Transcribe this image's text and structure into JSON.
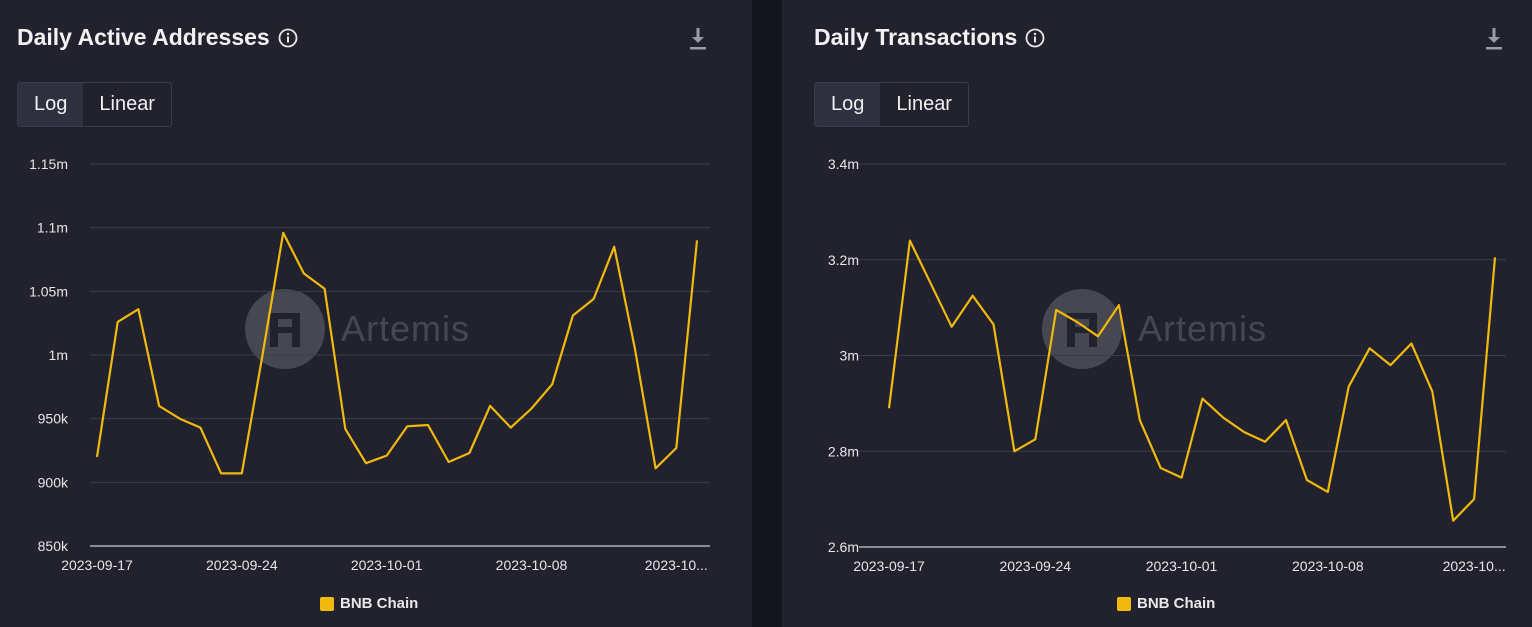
{
  "colors": {
    "series": "#f0b90b",
    "grid": "#3a3c48",
    "axis": "#8a8c96",
    "bg": "#21222d"
  },
  "watermark": {
    "text": "Artemis"
  },
  "chart_data": [
    {
      "type": "line",
      "title": "Daily Active Addresses",
      "scale_options": [
        "Log",
        "Linear"
      ],
      "active_scale": "Log",
      "y_ticks": [
        {
          "value": 850000,
          "label": "850k"
        },
        {
          "value": 900000,
          "label": "900k"
        },
        {
          "value": 950000,
          "label": "950k"
        },
        {
          "value": 1000000,
          "label": "1m"
        },
        {
          "value": 1050000,
          "label": "1.05m"
        },
        {
          "value": 1100000,
          "label": "1.1m"
        },
        {
          "value": 1150000,
          "label": "1.15m"
        }
      ],
      "x_tick_labels": [
        "2023-09-17",
        "2023-09-24",
        "2023-10-01",
        "2023-10-08",
        "2023-10..."
      ],
      "x_tick_indices": [
        0,
        7,
        14,
        21,
        28
      ],
      "ylim": [
        850000,
        1150000
      ],
      "series": [
        {
          "name": "BNB Chain",
          "values": [
            920000,
            1026000,
            1036000,
            960000,
            950000,
            943000,
            907000,
            907000,
            1000000,
            1096000,
            1064000,
            1052000,
            942000,
            915000,
            921000,
            944000,
            945000,
            916000,
            923000,
            960000,
            943000,
            958000,
            977000,
            1031000,
            1044000,
            1085000,
            1005000,
            911000,
            927000,
            1090000
          ]
        }
      ]
    },
    {
      "type": "line",
      "title": "Daily Transactions",
      "scale_options": [
        "Log",
        "Linear"
      ],
      "active_scale": "Log",
      "y_ticks": [
        {
          "value": 2600000,
          "label": "2.6m"
        },
        {
          "value": 2800000,
          "label": "2.8m"
        },
        {
          "value": 3000000,
          "label": "3m"
        },
        {
          "value": 3200000,
          "label": "3.2m"
        },
        {
          "value": 3400000,
          "label": "3.4m"
        }
      ],
      "x_tick_labels": [
        "2023-09-17",
        "2023-09-24",
        "2023-10-01",
        "2023-10-08",
        "2023-10..."
      ],
      "x_tick_indices": [
        0,
        7,
        14,
        21,
        28
      ],
      "ylim": [
        2600000,
        3400000
      ],
      "series": [
        {
          "name": "BNB Chain",
          "values": [
            2890000,
            3240000,
            3150000,
            3060000,
            3125000,
            3065000,
            2800000,
            2825000,
            3095000,
            3070000,
            3040000,
            3105000,
            2865000,
            2765000,
            2745000,
            2910000,
            2870000,
            2840000,
            2820000,
            2865000,
            2740000,
            2715000,
            2935000,
            3015000,
            2980000,
            3025000,
            2925000,
            2655000,
            2700000,
            3205000
          ]
        }
      ]
    }
  ]
}
